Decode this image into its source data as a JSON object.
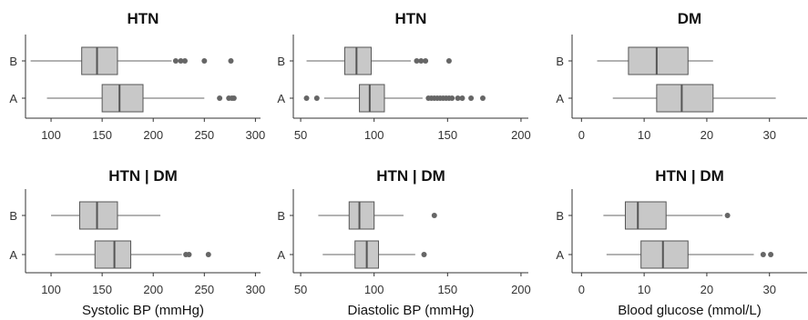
{
  "chart_data": [
    {
      "type": "boxplot",
      "title": "HTN",
      "xlabel": "",
      "xlim": [
        75,
        305
      ],
      "xticks": [
        100,
        150,
        200,
        250,
        300
      ],
      "categories": [
        "B",
        "A"
      ],
      "boxes": [
        {
          "category": "B",
          "whisker_low": 80,
          "q1": 130,
          "median": 145,
          "q3": 165,
          "whisker_high": 218,
          "outliers": [
            222,
            227,
            231,
            250,
            276
          ]
        },
        {
          "category": "A",
          "whisker_low": 96,
          "q1": 150,
          "median": 167,
          "q3": 190,
          "whisker_high": 250,
          "outliers": [
            265,
            274,
            277,
            279
          ]
        }
      ]
    },
    {
      "type": "boxplot",
      "title": "HTN",
      "xlabel": "",
      "xlim": [
        45,
        205
      ],
      "xticks": [
        50,
        100,
        150,
        200
      ],
      "categories": [
        "B",
        "A"
      ],
      "boxes": [
        {
          "category": "B",
          "whisker_low": 54,
          "q1": 80,
          "median": 88,
          "q3": 98,
          "whisker_high": 125,
          "outliers": [
            129,
            132,
            135,
            151
          ]
        },
        {
          "category": "A",
          "whisker_low": 66,
          "q1": 90,
          "median": 97,
          "q3": 107,
          "whisker_high": 133,
          "outliers": [
            54,
            61,
            137,
            139,
            141,
            143,
            145,
            147,
            149,
            151,
            153,
            157,
            160,
            166,
            174
          ]
        }
      ]
    },
    {
      "type": "boxplot",
      "title": "DM",
      "xlabel": "",
      "xlim": [
        -1.5,
        36
      ],
      "xticks": [
        0,
        10,
        20,
        30
      ],
      "categories": [
        "B",
        "A"
      ],
      "boxes": [
        {
          "category": "B",
          "whisker_low": 2.5,
          "q1": 7.5,
          "median": 12,
          "q3": 17,
          "whisker_high": 21,
          "outliers": []
        },
        {
          "category": "A",
          "whisker_low": 5,
          "q1": 12,
          "median": 16,
          "q3": 21,
          "whisker_high": 31,
          "outliers": []
        }
      ]
    },
    {
      "type": "boxplot",
      "title": "HTN | DM",
      "xlabel": "Systolic BP (mmHg)",
      "xlim": [
        75,
        305
      ],
      "xticks": [
        100,
        150,
        200,
        250,
        300
      ],
      "categories": [
        "B",
        "A"
      ],
      "boxes": [
        {
          "category": "B",
          "whisker_low": 100,
          "q1": 128,
          "median": 145,
          "q3": 165,
          "whisker_high": 207,
          "outliers": []
        },
        {
          "category": "A",
          "whisker_low": 104,
          "q1": 143,
          "median": 162,
          "q3": 178,
          "whisker_high": 228,
          "outliers": [
            232,
            235,
            254
          ]
        }
      ]
    },
    {
      "type": "boxplot",
      "title": "HTN | DM",
      "xlabel": "Diastolic BP (mmHg)",
      "xlim": [
        45,
        205
      ],
      "xticks": [
        50,
        100,
        150,
        200
      ],
      "categories": [
        "B",
        "A"
      ],
      "boxes": [
        {
          "category": "B",
          "whisker_low": 62,
          "q1": 83,
          "median": 90,
          "q3": 100,
          "whisker_high": 120,
          "outliers": [
            141
          ]
        },
        {
          "category": "A",
          "whisker_low": 65,
          "q1": 87,
          "median": 95,
          "q3": 103,
          "whisker_high": 128,
          "outliers": [
            134
          ]
        }
      ]
    },
    {
      "type": "boxplot",
      "title": "HTN | DM",
      "xlabel": "Blood glucose (mmol/L)",
      "xlim": [
        -1.5,
        36
      ],
      "xticks": [
        0,
        10,
        20,
        30
      ],
      "categories": [
        "B",
        "A"
      ],
      "boxes": [
        {
          "category": "B",
          "whisker_low": 3.5,
          "q1": 7,
          "median": 9,
          "q3": 13.5,
          "whisker_high": 22.5,
          "outliers": [
            23.3
          ]
        },
        {
          "category": "A",
          "whisker_low": 4,
          "q1": 9.5,
          "median": 13,
          "q3": 17,
          "whisker_high": 27.5,
          "outliers": [
            29,
            30.2
          ]
        }
      ]
    }
  ]
}
